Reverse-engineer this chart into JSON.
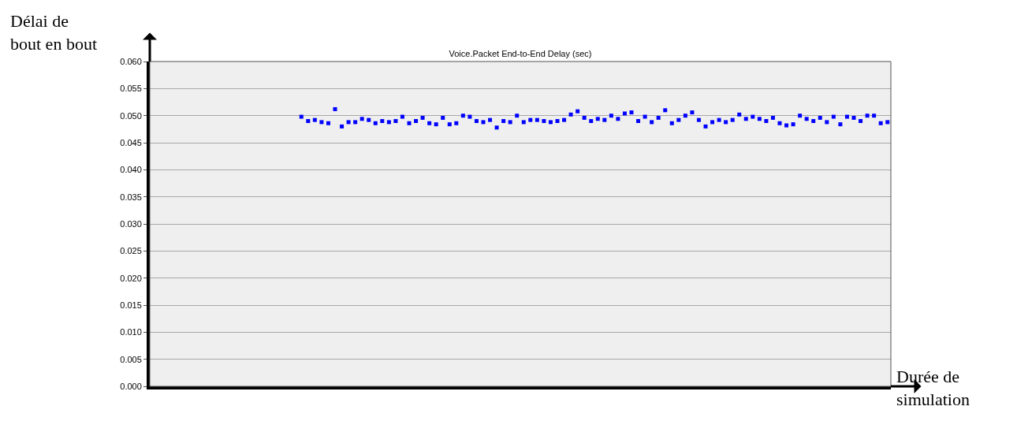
{
  "chart_data": {
    "type": "scatter",
    "title": "Voice.Packet End-to-End Delay (sec)",
    "xlabel": "Durée de simulation",
    "ylabel": "Délai de bout en bout",
    "categories": [
      null,
      null,
      null,
      null,
      null,
      null,
      null,
      null,
      null,
      null,
      null,
      null,
      null,
      null,
      null,
      null,
      null,
      null,
      null,
      null,
      null,
      null,
      null,
      null,
      null,
      null,
      null,
      null,
      null,
      null,
      null,
      null,
      null,
      null,
      null,
      null,
      null,
      null,
      null,
      null,
      null,
      null,
      null,
      null,
      null,
      null,
      null,
      null,
      null,
      null,
      null,
      null,
      null,
      null,
      null,
      null,
      null,
      null,
      null,
      null,
      null,
      null,
      null,
      null,
      null,
      null,
      null,
      null,
      null,
      null,
      null,
      null,
      null,
      null,
      null,
      null,
      null,
      null,
      null,
      null,
      null,
      null,
      null,
      null,
      null,
      null,
      null,
      null,
      null,
      null,
      null,
      null,
      null,
      null,
      null,
      null,
      null,
      null,
      null,
      null,
      null,
      null,
      null,
      null,
      null,
      null,
      null,
      null,
      null,
      null
    ],
    "series": [
      {
        "color": "#0000ff",
        "values": [
          null,
          null,
          null,
          null,
          null,
          null,
          null,
          null,
          null,
          null,
          null,
          null,
          null,
          null,
          null,
          null,
          null,
          null,
          null,
          null,
          null,
          null,
          0.0498,
          0.049,
          0.0492,
          0.0488,
          0.0486,
          0.0512,
          0.048,
          0.0488,
          0.0488,
          0.0494,
          0.0492,
          0.0486,
          0.049,
          0.0488,
          0.049,
          0.0498,
          0.0486,
          0.049,
          0.0496,
          0.0486,
          0.0484,
          0.0496,
          0.0484,
          0.0486,
          0.05,
          0.0498,
          0.049,
          0.0488,
          0.0492,
          0.0478,
          0.049,
          0.0488,
          0.05,
          0.0488,
          0.0492,
          0.0492,
          0.049,
          0.0488,
          0.049,
          0.0492,
          0.0502,
          0.0508,
          0.0496,
          0.049,
          0.0494,
          0.0492,
          0.05,
          0.0494,
          0.0504,
          0.0506,
          0.049,
          0.0498,
          0.0488,
          0.0496,
          0.051,
          0.0486,
          0.0492,
          0.05,
          0.0506,
          0.0492,
          0.048,
          0.0488,
          0.0492,
          0.0488,
          0.0492,
          0.0502,
          0.0494,
          0.0498,
          0.0494,
          0.049,
          0.0496,
          0.0486,
          0.0482,
          0.0484,
          0.05,
          0.0494,
          0.049,
          0.0496,
          0.0488,
          0.0498,
          0.0484,
          0.0498,
          0.0496,
          0.049,
          0.05,
          0.05,
          0.0486,
          0.0488
        ]
      }
    ],
    "ylim": [
      0,
      0.06
    ],
    "yticks": [
      {
        "value": 0,
        "label": "0.000"
      },
      {
        "value": 0.005,
        "label": "0.005"
      },
      {
        "value": 0.01,
        "label": "0.010"
      },
      {
        "value": 0.015,
        "label": "0.015"
      },
      {
        "value": 0.02,
        "label": "0.020"
      },
      {
        "value": 0.025,
        "label": "0.025"
      },
      {
        "value": 0.03,
        "label": "0.030"
      },
      {
        "value": 0.035,
        "label": "0.035"
      },
      {
        "value": 0.04,
        "label": "0.040"
      },
      {
        "value": 0.045,
        "label": "0.045"
      },
      {
        "value": 0.05,
        "label": "0.050"
      },
      {
        "value": 0.055,
        "label": "0.055"
      },
      {
        "value": 0.06,
        "label": "0.060"
      }
    ],
    "grid": "y",
    "marker": "square",
    "tick_labels": "y"
  }
}
